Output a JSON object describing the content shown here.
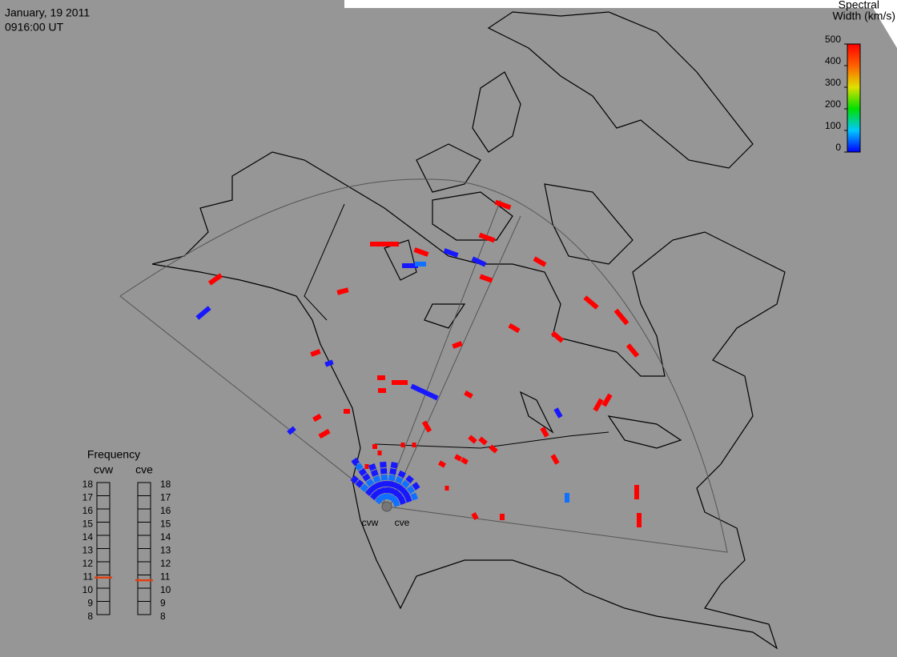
{
  "header": {
    "date": "January, 19 2011",
    "time": "0916:00 UT"
  },
  "colorbar": {
    "title": [
      "Spectral",
      "Width (km/s)"
    ],
    "lim": [
      0,
      500
    ],
    "ticks": [
      0,
      100,
      200,
      300,
      400,
      500
    ]
  },
  "frequency": {
    "title": "Frequency",
    "lim": [
      8,
      18
    ],
    "ticks": [
      8,
      9,
      10,
      11,
      12,
      13,
      14,
      15,
      16,
      17,
      18
    ],
    "radars": [
      {
        "name": "cvw",
        "value": 10.8
      },
      {
        "name": "cve",
        "value": 10.6
      }
    ]
  },
  "radars": [
    "cvw",
    "cve"
  ]
}
